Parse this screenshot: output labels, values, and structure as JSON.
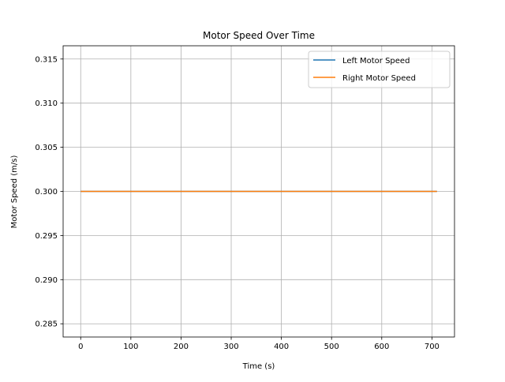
{
  "chart_data": {
    "type": "line",
    "title": "Motor Speed Over Time",
    "xlabel": "Time (s)",
    "ylabel": "Motor Speed (m/s)",
    "xlim": [
      -35,
      745
    ],
    "ylim": [
      0.2835,
      0.3165
    ],
    "xticks": [
      0,
      100,
      200,
      300,
      400,
      500,
      600,
      700
    ],
    "yticks": [
      0.285,
      0.29,
      0.295,
      0.3,
      0.305,
      0.31,
      0.315
    ],
    "ytick_labels": [
      "0.285",
      "0.290",
      "0.295",
      "0.300",
      "0.305",
      "0.310",
      "0.315"
    ],
    "grid": true,
    "legend_position": "top-right",
    "series": [
      {
        "name": "Left Motor Speed",
        "color": "#1f77b4",
        "x": [
          0,
          710
        ],
        "y": [
          0.3,
          0.3
        ]
      },
      {
        "name": "Right Motor Speed",
        "color": "#ff7f0e",
        "x": [
          0,
          710
        ],
        "y": [
          0.3,
          0.3
        ]
      }
    ]
  }
}
